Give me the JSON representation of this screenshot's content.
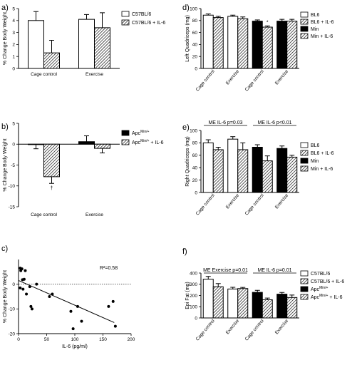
{
  "chart_data": [
    {
      "panel": "a)",
      "type": "bar",
      "categories": [
        "Cage control",
        "Exercise"
      ],
      "series": [
        {
          "name": "C57BL/6",
          "values": [
            4.0,
            4.1
          ],
          "errors": [
            0.75,
            0.4
          ],
          "fill": "white"
        },
        {
          "name": "C57BL/6 + IL-6",
          "values": [
            1.3,
            3.4
          ],
          "errors": [
            1.05,
            1.25
          ],
          "fill": "hatch"
        }
      ],
      "ylabel": "% Change Body Weight",
      "ylim": [
        0,
        5
      ],
      "yticks": [
        0,
        1,
        2,
        3,
        4,
        5
      ]
    },
    {
      "panel": "b)",
      "type": "bar",
      "categories": [
        "Cage control",
        "Exercise"
      ],
      "series": [
        {
          "name": "Apc",
          "superscript": "Min/+",
          "suffix": "",
          "values": [
            -0.1,
            0.6
          ],
          "errors": [
            1.0,
            1.4
          ],
          "fill": "black"
        },
        {
          "name": "Apc",
          "superscript": "Min/+",
          "suffix": " + IL-6",
          "values": [
            -7.8,
            -1.0
          ],
          "errors": [
            1.6,
            1.1
          ],
          "fill": "hatch"
        }
      ],
      "ylabel": "% Change Body Weight",
      "ylim": [
        -15,
        5
      ],
      "yticks": [
        -15,
        -10,
        -5,
        0,
        5
      ],
      "annotations": [
        {
          "text": "†",
          "category": "Cage control",
          "series": 1
        }
      ]
    },
    {
      "panel": "c)",
      "type": "scatter",
      "xlabel": "IL-6 (pg/ml)",
      "ylabel": "% Change Body Weight",
      "xlim": [
        0,
        200
      ],
      "ylim": [
        -20,
        10
      ],
      "xticks": [
        0,
        50,
        100,
        150,
        200
      ],
      "yticks": [
        -20,
        -10,
        0
      ],
      "r2_label": "R²=0.58",
      "fit": {
        "x": [
          0,
          170
        ],
        "y": [
          1.5,
          -15.5
        ]
      },
      "points": [
        {
          "x": 3,
          "y": 6.5
        },
        {
          "x": 4,
          "y": 5.5
        },
        {
          "x": 6,
          "y": 6.2
        },
        {
          "x": 7,
          "y": 1.8
        },
        {
          "x": 3,
          "y": -1.5
        },
        {
          "x": 8,
          "y": -2
        },
        {
          "x": 10,
          "y": 2
        },
        {
          "x": 12,
          "y": 5.5
        },
        {
          "x": 14,
          "y": -4
        },
        {
          "x": 20,
          "y": -1
        },
        {
          "x": 22,
          "y": -9
        },
        {
          "x": 24,
          "y": -10
        },
        {
          "x": 32,
          "y": 0
        },
        {
          "x": 55,
          "y": -5
        },
        {
          "x": 60,
          "y": -4
        },
        {
          "x": 93,
          "y": -11
        },
        {
          "x": 97,
          "y": -18
        },
        {
          "x": 105,
          "y": -9
        },
        {
          "x": 112,
          "y": -15
        },
        {
          "x": 160,
          "y": -9
        },
        {
          "x": 168,
          "y": -7
        },
        {
          "x": 172,
          "y": -17
        }
      ]
    },
    {
      "panel": "d)",
      "type": "bar",
      "categories": [
        "Cage control",
        "Exercise",
        "Cage control",
        "Exercise"
      ],
      "series": [
        {
          "name": "BL6",
          "values": [
            89,
            87,
            null,
            null
          ],
          "errors": [
            2,
            2,
            null,
            null
          ],
          "fill": "white"
        },
        {
          "name": "BL6 + IL-6",
          "values": [
            85,
            83,
            null,
            null
          ],
          "errors": [
            2,
            3,
            null,
            null
          ],
          "fill": "hatch"
        },
        {
          "name": "Min",
          "values": [
            null,
            null,
            79,
            79
          ],
          "errors": [
            null,
            null,
            2,
            3
          ],
          "fill": "black"
        },
        {
          "name": "Min + IL-6",
          "values": [
            null,
            null,
            69,
            79
          ],
          "errors": [
            null,
            null,
            2,
            3
          ],
          "fill": "hatch"
        }
      ],
      "ylabel": "Left Quadriceps (mg)",
      "ylim": [
        0,
        100
      ],
      "yticks": [
        0,
        20,
        40,
        60,
        80,
        100
      ],
      "annotations": [
        {
          "text": "*",
          "group": 2,
          "series": 3
        }
      ]
    },
    {
      "panel": "e)",
      "type": "bar",
      "categories": [
        "Cage control",
        "Exercise",
        "Cage control",
        "Exercise"
      ],
      "series": [
        {
          "name": "BL6",
          "values": [
            80,
            86,
            null,
            null
          ],
          "errors": [
            5,
            4,
            null,
            null
          ],
          "fill": "white"
        },
        {
          "name": "BL6 + IL-6",
          "values": [
            69,
            69,
            null,
            null
          ],
          "errors": [
            4,
            11,
            null,
            null
          ],
          "fill": "hatch"
        },
        {
          "name": "Min",
          "values": [
            null,
            null,
            73,
            71
          ],
          "errors": [
            null,
            null,
            4,
            4
          ],
          "fill": "black"
        },
        {
          "name": "Min + IL-6",
          "values": [
            null,
            null,
            51,
            57
          ],
          "errors": [
            null,
            null,
            8,
            3
          ],
          "fill": "hatch"
        }
      ],
      "ylabel": "Right Quadriceps (mg)",
      "ylim": [
        0,
        100
      ],
      "yticks": [
        0,
        20,
        40,
        60,
        80,
        100
      ],
      "brackets": [
        {
          "text": "ME IL-6 p=0.03",
          "groups": [
            0,
            1
          ]
        },
        {
          "text": "ME IL-6 p<0.01",
          "groups": [
            2,
            3
          ]
        }
      ]
    },
    {
      "panel": "f)",
      "type": "bar",
      "categories": [
        "Cage control",
        "Exercise",
        "Cage control",
        "Exercise"
      ],
      "series": [
        {
          "name": "C57BL/6",
          "superscript": "",
          "suffix": "",
          "values": [
            345,
            258,
            null,
            null
          ],
          "errors": [
            25,
            15,
            null,
            null
          ],
          "fill": "white"
        },
        {
          "name": "C57BL/6 + IL-6",
          "superscript": "",
          "suffix": "",
          "values": [
            278,
            262,
            null,
            null
          ],
          "errors": [
            28,
            10,
            null,
            null
          ],
          "fill": "hatch"
        },
        {
          "name": "Apc",
          "superscript": "Min/+",
          "suffix": "",
          "values": [
            null,
            null,
            228,
            212
          ],
          "errors": [
            null,
            null,
            18,
            15
          ],
          "fill": "black"
        },
        {
          "name": "Apc",
          "superscript": "Min/+",
          "suffix": " + IL-6",
          "values": [
            null,
            null,
            162,
            182
          ],
          "errors": [
            null,
            null,
            15,
            22
          ],
          "fill": "hatch"
        }
      ],
      "ylabel": "Epi Fat (mg)",
      "ylim": [
        0,
        400
      ],
      "yticks": [
        0,
        100,
        200,
        300,
        400
      ],
      "brackets": [
        {
          "text": "ME Exercise p=0.01",
          "groups": [
            0,
            1
          ]
        },
        {
          "text": "ME IL-6 p=0.01",
          "groups": [
            2,
            3
          ]
        }
      ]
    }
  ]
}
